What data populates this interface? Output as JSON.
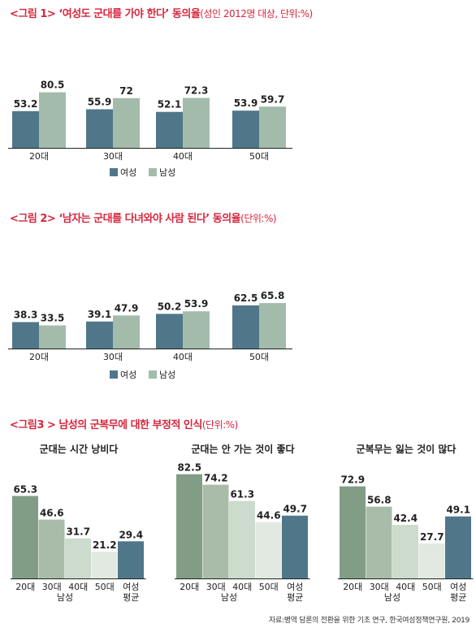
{
  "colors": {
    "female": "#4f7789",
    "male": "#a3bbab",
    "title": "#d7263d",
    "g1": "#819d86",
    "g2": "#a8bca9",
    "g3": "#cddbcd",
    "g4": "#e1e9e1",
    "avg": "#4f7789"
  },
  "source": "자료:병역 담론의 전환을 위한 기초 연구, 한국여성정책연구원, 2019",
  "chart_data": [
    {
      "type": "bar",
      "title_label": "<그림 1>",
      "title": "‘여성도 군대를 가야 한다’ 동의율",
      "subtitle": "(성인 2012명 대상, 단위:%)",
      "categories": [
        "20대",
        "30대",
        "40대",
        "50대"
      ],
      "series": [
        {
          "name": "여성",
          "values": [
            53.2,
            55.9,
            52.1,
            53.9
          ]
        },
        {
          "name": "남성",
          "values": [
            80.5,
            72,
            72.3,
            59.7
          ]
        }
      ],
      "value_labels": [
        [
          "53.2",
          "55.9",
          "52.1",
          "53.9"
        ],
        [
          "80.5",
          "72",
          "72.3",
          "59.7"
        ]
      ],
      "ylim": [
        0,
        100
      ],
      "legend": "bottom-center"
    },
    {
      "type": "bar",
      "title_label": "<그림 2>",
      "title": "‘남자는 군대를 다녀와야 사람 된다’ 동의율",
      "subtitle": "(단위:%)",
      "categories": [
        "20대",
        "30대",
        "40대",
        "50대"
      ],
      "series": [
        {
          "name": "여성",
          "values": [
            38.3,
            39.1,
            50.2,
            62.5
          ]
        },
        {
          "name": "남성",
          "values": [
            33.5,
            47.9,
            53.9,
            65.8
          ]
        }
      ],
      "value_labels": [
        [
          "38.3",
          "39.1",
          "50.2",
          "62.5"
        ],
        [
          "33.5",
          "47.9",
          "53.9",
          "65.8"
        ]
      ],
      "ylim": [
        0,
        100
      ],
      "legend": "bottom-center"
    },
    {
      "type": "bar",
      "title_label": "<그림3 >",
      "title": "남성의 군복무에 대한 부정적 인식",
      "subtitle": "(단위:%)",
      "group_label": "남성",
      "panels": [
        {
          "title": "군대는 시간 낭비다",
          "categories": [
            "20대",
            "30대",
            "40대",
            "50대",
            "여성 평균"
          ],
          "values": [
            65.3,
            46.6,
            31.7,
            21.2,
            29.4
          ],
          "value_labels": [
            "65.3",
            "46.6",
            "31.7",
            "21.2",
            "29.4"
          ]
        },
        {
          "title": "군대는 안 가는 것이 좋다",
          "categories": [
            "20대",
            "30대",
            "40대",
            "50대",
            "여성 평균"
          ],
          "values": [
            82.5,
            74.2,
            61.3,
            44.6,
            49.7
          ],
          "value_labels": [
            "82.5",
            "74.2",
            "61.3",
            "44.6",
            "49.7"
          ]
        },
        {
          "title": "군복무는 잃는 것이 많다",
          "categories": [
            "20대",
            "30대",
            "40대",
            "50대",
            "여성 평균"
          ],
          "values": [
            72.9,
            56.8,
            42.4,
            27.7,
            49.1
          ],
          "value_labels": [
            "72.9",
            "56.8",
            "42.4",
            "27.7",
            "49.1"
          ]
        }
      ],
      "ylim": [
        0,
        100
      ]
    }
  ]
}
